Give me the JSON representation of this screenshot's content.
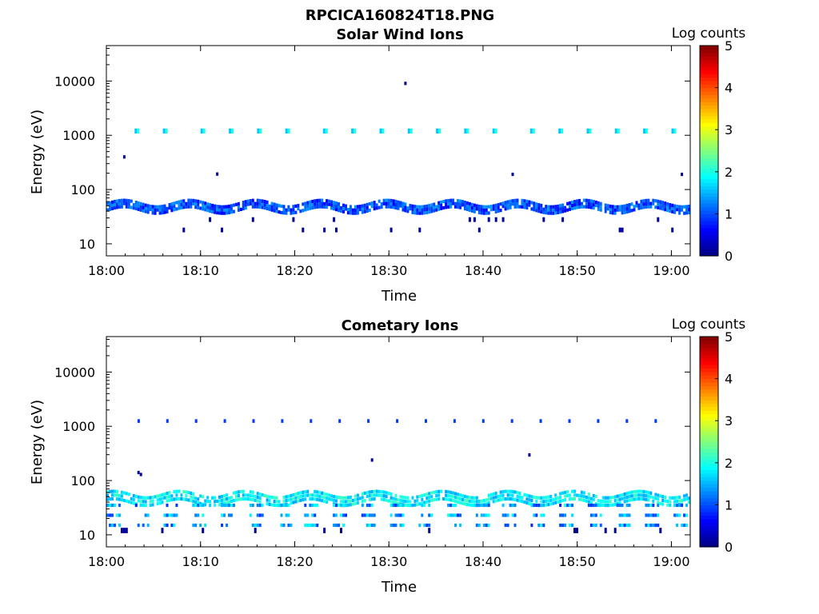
{
  "figure": {
    "title": "RPCICA160824T18.PNG"
  },
  "chart_data": [
    {
      "type": "heatmap",
      "title": "Solar Wind Ions",
      "xlabel": "Time",
      "ylabel": "Energy (eV)",
      "xlim": [
        "18:00",
        "19:02"
      ],
      "ylim": [
        6,
        45000
      ],
      "yscale": "log",
      "x_ticks": [
        "18:00",
        "18:10",
        "18:20",
        "18:30",
        "18:40",
        "18:50",
        "19:00"
      ],
      "y_ticks": [
        "10",
        "100",
        "1000",
        "10000"
      ],
      "colorbar": {
        "label": "Log counts",
        "range": [
          0,
          5
        ],
        "ticks": [
          "0",
          "1",
          "2",
          "3",
          "4",
          "5"
        ],
        "colormap": "jet"
      },
      "features": {
        "main_band_energy_eV": [
          42,
          55
        ],
        "main_band_level": 1.0,
        "peak_band_times": [
          "18:03",
          "18:06",
          "18:10",
          "18:13",
          "18:16",
          "18:19",
          "18:23",
          "18:26",
          "18:29",
          "18:32",
          "18:35",
          "18:38",
          "18:41",
          "18:45",
          "18:48",
          "18:51",
          "18:54",
          "18:57",
          "19:00"
        ],
        "high_band_energy_eV": 1200,
        "high_band_level": 1.6,
        "low_energy_blobs_eV": [
          18,
          28
        ]
      }
    },
    {
      "type": "heatmap",
      "title": "Cometary Ions",
      "xlabel": "Time",
      "ylabel": "Energy (eV)",
      "xlim": [
        "18:00",
        "19:02"
      ],
      "ylim": [
        6,
        45000
      ],
      "yscale": "log",
      "x_ticks": [
        "18:00",
        "18:10",
        "18:20",
        "18:30",
        "18:40",
        "18:50",
        "19:00"
      ],
      "y_ticks": [
        "10",
        "100",
        "1000",
        "10000"
      ],
      "colorbar": {
        "label": "Log counts",
        "range": [
          0,
          5
        ],
        "ticks": [
          "0",
          "1",
          "2",
          "3",
          "4",
          "5"
        ],
        "colormap": "jet"
      },
      "features": {
        "main_band_energy_eV": [
          40,
          55
        ],
        "main_band_level": 1.8,
        "lower_band_energy_eV": [
          15,
          35
        ],
        "lower_band_level": 1.4,
        "high_band_energy_eV": 1250,
        "high_band_level": 0.9
      }
    }
  ]
}
